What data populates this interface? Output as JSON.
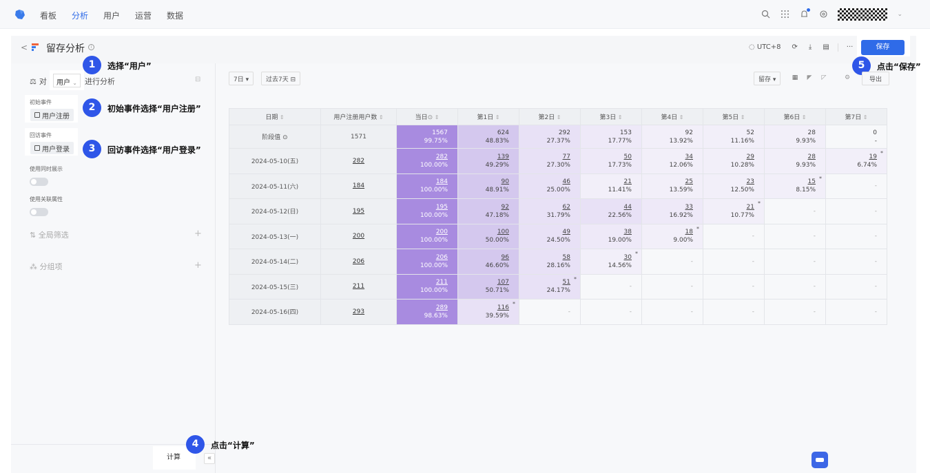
{
  "nav": {
    "items": [
      "看板",
      "分析",
      "用户",
      "运营",
      "数据"
    ],
    "active_index": 1
  },
  "header": {
    "back_label": "<",
    "title": "留存分析",
    "info_label": "i",
    "timezone_label": "UTC+8",
    "more_label": "···",
    "save_label": "保存"
  },
  "sidebar": {
    "analyze_prefix": "对",
    "user_select": "用户",
    "analyze_suffix": "进行分析",
    "initial_event_label": "初始事件",
    "initial_event_value": "用户注册",
    "return_event_label": "回访事件",
    "return_event_value": "用户登录",
    "simultaneous_label": "使用同时展示",
    "related_attr_label": "使用关联属性",
    "global_filter_label": "全局筛选",
    "group_label": "分组项",
    "plus": "+",
    "calc_label": "计算",
    "collapse_label": "«"
  },
  "annotations": [
    {
      "num": "1",
      "text": "选择“用户”"
    },
    {
      "num": "2",
      "text": "初始事件选择“用户注册”"
    },
    {
      "num": "3",
      "text": "回访事件选择“用户登录”"
    },
    {
      "num": "4",
      "text": "点击“计算”"
    },
    {
      "num": "5",
      "text": "点击“保存”"
    }
  ],
  "toolbar": {
    "period_label": "7日 ▾",
    "range_label": "过去7天",
    "retention_label": "留存 ▾",
    "export_label": "导出"
  },
  "colors": {
    "accent": "#2f6be8",
    "badge": "#2f56e8",
    "heat_dark": "#a88be0",
    "heat_mid": "#d4c8ee",
    "heat_light": "#e8e1f6"
  },
  "chart_data": {
    "type": "table",
    "columns": [
      "日期",
      "用户注册用户数",
      "当日",
      "第1日",
      "第2日",
      "第3日",
      "第4日",
      "第5日",
      "第6日",
      "第7日"
    ],
    "rows": [
      {
        "date": "阶段值",
        "count": "1571",
        "cells": [
          [
            "1567",
            "99.75%"
          ],
          [
            "624",
            "48.83%"
          ],
          [
            "292",
            "27.37%"
          ],
          [
            "153",
            "17.77%"
          ],
          [
            "92",
            "13.92%"
          ],
          [
            "52",
            "11.16%"
          ],
          [
            "28",
            "9.93%"
          ],
          [
            "0",
            "-"
          ]
        ],
        "stars": []
      },
      {
        "date": "2024-05-10(五)",
        "count": "282",
        "cells": [
          [
            "282",
            "100.00%"
          ],
          [
            "139",
            "49.29%"
          ],
          [
            "77",
            "27.30%"
          ],
          [
            "50",
            "17.73%"
          ],
          [
            "34",
            "12.06%"
          ],
          [
            "29",
            "10.28%"
          ],
          [
            "28",
            "9.93%"
          ],
          [
            "19",
            "6.74%"
          ]
        ],
        "stars": [
          7
        ]
      },
      {
        "date": "2024-05-11(六)",
        "count": "184",
        "cells": [
          [
            "184",
            "100.00%"
          ],
          [
            "90",
            "48.91%"
          ],
          [
            "46",
            "25.00%"
          ],
          [
            "21",
            "11.41%"
          ],
          [
            "25",
            "13.59%"
          ],
          [
            "23",
            "12.50%"
          ],
          [
            "15",
            "8.15%"
          ],
          [
            "-",
            ""
          ]
        ],
        "stars": [
          6
        ]
      },
      {
        "date": "2024-05-12(日)",
        "count": "195",
        "cells": [
          [
            "195",
            "100.00%"
          ],
          [
            "92",
            "47.18%"
          ],
          [
            "62",
            "31.79%"
          ],
          [
            "44",
            "22.56%"
          ],
          [
            "33",
            "16.92%"
          ],
          [
            "21",
            "10.77%"
          ],
          [
            "-",
            ""
          ],
          [
            "-",
            ""
          ]
        ],
        "stars": [
          5
        ]
      },
      {
        "date": "2024-05-13(一)",
        "count": "200",
        "cells": [
          [
            "200",
            "100.00%"
          ],
          [
            "100",
            "50.00%"
          ],
          [
            "49",
            "24.50%"
          ],
          [
            "38",
            "19.00%"
          ],
          [
            "18",
            "9.00%"
          ],
          [
            "-",
            ""
          ],
          [
            "-",
            ""
          ],
          [
            "-",
            ""
          ]
        ],
        "stars": [
          4
        ]
      },
      {
        "date": "2024-05-14(二)",
        "count": "206",
        "cells": [
          [
            "206",
            "100.00%"
          ],
          [
            "96",
            "46.60%"
          ],
          [
            "58",
            "28.16%"
          ],
          [
            "30",
            "14.56%"
          ],
          [
            "-",
            ""
          ],
          [
            "-",
            ""
          ],
          [
            "-",
            ""
          ],
          [
            "-",
            ""
          ]
        ],
        "stars": [
          3
        ]
      },
      {
        "date": "2024-05-15(三)",
        "count": "211",
        "cells": [
          [
            "211",
            "100.00%"
          ],
          [
            "107",
            "50.71%"
          ],
          [
            "51",
            "24.17%"
          ],
          [
            "-",
            ""
          ],
          [
            "-",
            ""
          ],
          [
            "-",
            ""
          ],
          [
            "-",
            ""
          ],
          [
            "-",
            ""
          ]
        ],
        "stars": [
          2
        ]
      },
      {
        "date": "2024-05-16(四)",
        "count": "293",
        "cells": [
          [
            "289",
            "98.63%"
          ],
          [
            "116",
            "39.59%"
          ],
          [
            "-",
            ""
          ],
          [
            "-",
            ""
          ],
          [
            "-",
            ""
          ],
          [
            "-",
            ""
          ],
          [
            "-",
            ""
          ],
          [
            "-",
            ""
          ]
        ],
        "stars": [
          1
        ]
      }
    ]
  }
}
